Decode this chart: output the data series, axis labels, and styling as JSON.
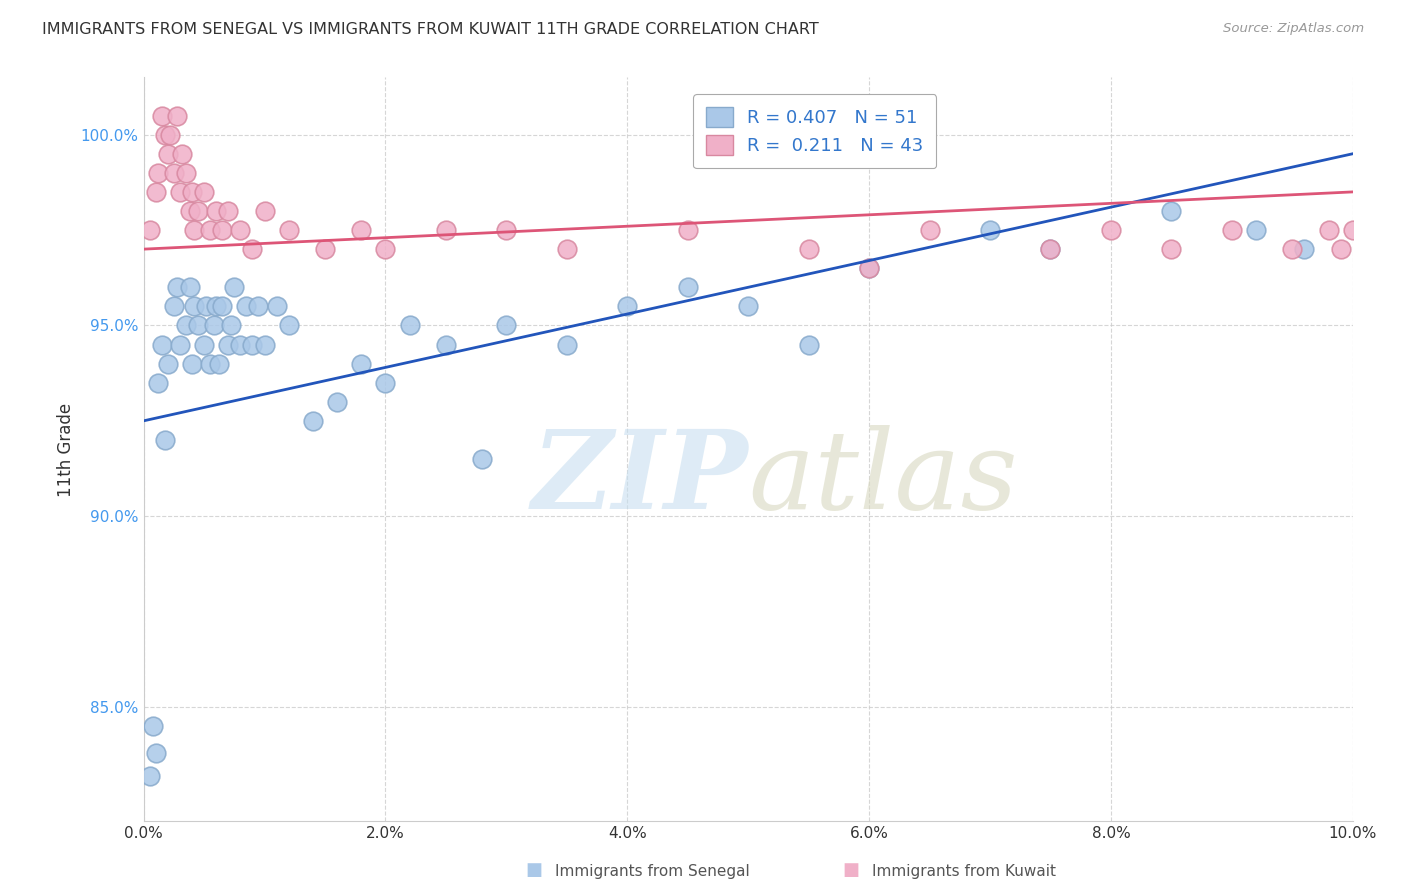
{
  "title": "IMMIGRANTS FROM SENEGAL VS IMMIGRANTS FROM KUWAIT 11TH GRADE CORRELATION CHART",
  "source": "Source: ZipAtlas.com",
  "xlabel_bottom": "Immigrants from Senegal",
  "xlabel2_bottom": "Immigrants from Kuwait",
  "ylabel": "11th Grade",
  "xlim": [
    0.0,
    10.0
  ],
  "ylim": [
    82.0,
    101.5
  ],
  "xticks": [
    0.0,
    2.0,
    4.0,
    6.0,
    8.0,
    10.0
  ],
  "xtick_labels": [
    "0.0%",
    "2.0%",
    "4.0%",
    "6.0%",
    "8.0%",
    "10.0%"
  ],
  "yticks": [
    85.0,
    90.0,
    95.0,
    100.0
  ],
  "ytick_labels": [
    "85.0%",
    "90.0%",
    "95.0%",
    "100.0%"
  ],
  "blue_color": "#aac8e8",
  "blue_edge": "#88aacc",
  "pink_color": "#f0b0c8",
  "pink_edge": "#d888a0",
  "line_blue": "#2255bb",
  "line_pink": "#dd5577",
  "R_blue": 0.407,
  "N_blue": 51,
  "R_pink": 0.211,
  "N_pink": 43,
  "legend_text_color": "#3377cc",
  "senegal_x": [
    0.05,
    0.08,
    0.1,
    0.12,
    0.15,
    0.18,
    0.2,
    0.25,
    0.28,
    0.3,
    0.35,
    0.38,
    0.4,
    0.42,
    0.45,
    0.5,
    0.52,
    0.55,
    0.58,
    0.6,
    0.62,
    0.65,
    0.7,
    0.72,
    0.75,
    0.8,
    0.85,
    0.9,
    0.95,
    1.0,
    1.1,
    1.2,
    1.4,
    1.6,
    1.8,
    2.0,
    2.2,
    2.5,
    2.8,
    3.0,
    3.5,
    4.0,
    4.5,
    5.0,
    5.5,
    6.0,
    7.0,
    7.5,
    8.5,
    9.2,
    9.6
  ],
  "senegal_y": [
    83.2,
    84.5,
    83.8,
    93.5,
    94.5,
    92.0,
    94.0,
    95.5,
    96.0,
    94.5,
    95.0,
    96.0,
    94.0,
    95.5,
    95.0,
    94.5,
    95.5,
    94.0,
    95.0,
    95.5,
    94.0,
    95.5,
    94.5,
    95.0,
    96.0,
    94.5,
    95.5,
    94.5,
    95.5,
    94.5,
    95.5,
    95.0,
    92.5,
    93.0,
    94.0,
    93.5,
    95.0,
    94.5,
    91.5,
    95.0,
    94.5,
    95.5,
    96.0,
    95.5,
    94.5,
    96.5,
    97.5,
    97.0,
    98.0,
    97.5,
    97.0
  ],
  "kuwait_x": [
    0.05,
    0.1,
    0.12,
    0.15,
    0.18,
    0.2,
    0.22,
    0.25,
    0.28,
    0.3,
    0.32,
    0.35,
    0.38,
    0.4,
    0.42,
    0.45,
    0.5,
    0.55,
    0.6,
    0.65,
    0.7,
    0.8,
    0.9,
    1.0,
    1.2,
    1.5,
    1.8,
    2.0,
    2.5,
    3.0,
    3.5,
    4.5,
    5.5,
    6.5,
    7.5,
    8.0,
    8.5,
    9.0,
    9.5,
    9.8,
    9.9,
    10.0,
    6.0
  ],
  "kuwait_y": [
    97.5,
    98.5,
    99.0,
    100.5,
    100.0,
    99.5,
    100.0,
    99.0,
    100.5,
    98.5,
    99.5,
    99.0,
    98.0,
    98.5,
    97.5,
    98.0,
    98.5,
    97.5,
    98.0,
    97.5,
    98.0,
    97.5,
    97.0,
    98.0,
    97.5,
    97.0,
    97.5,
    97.0,
    97.5,
    97.5,
    97.0,
    97.5,
    97.0,
    97.5,
    97.0,
    97.5,
    97.0,
    97.5,
    97.0,
    97.5,
    97.0,
    97.5,
    96.5
  ],
  "blue_line_y0": 92.5,
  "blue_line_y1": 99.5,
  "pink_line_y0": 97.0,
  "pink_line_y1": 98.5
}
